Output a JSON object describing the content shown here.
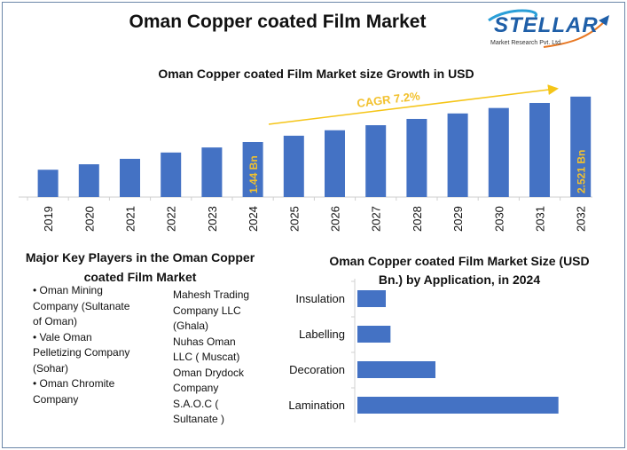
{
  "title": "Oman Copper coated Film Market",
  "logo": {
    "name": "STELLAR",
    "subtitle": "Market Research Pvt. Ltd."
  },
  "players": {
    "title": "Major Key Players in the Oman Copper coated Film Market",
    "column1": [
      "Oman Mining Company (Sultanate of Oman)",
      "Vale Oman Pelletizing Company (Sohar)",
      "Oman Chromite Company"
    ],
    "column2": [
      "Mahesh Trading Company LLC (Ghala)",
      "Nuhas Oman LLC ( Muscat)",
      "Oman Drydock Company S.A.O.C ( Sultanate )"
    ]
  },
  "chart_data": [
    {
      "type": "bar",
      "title": "Oman Copper coated Film Market size Growth in USD",
      "categories": [
        "2019",
        "2020",
        "2021",
        "2022",
        "2023",
        "2024",
        "2025",
        "2026",
        "2027",
        "2028",
        "2029",
        "2030",
        "2031",
        "2032"
      ],
      "values": [
        0.78,
        0.91,
        1.04,
        1.19,
        1.31,
        1.44,
        1.59,
        1.72,
        1.84,
        1.99,
        2.12,
        2.25,
        2.37,
        2.521
      ],
      "data_labels": {
        "2024": "1.44 Bn",
        "2032": "2.521 Bn"
      },
      "annotation": "CAGR 7.2%",
      "ylim": [
        0.13,
        2.75
      ],
      "xlabel": "",
      "ylabel": "",
      "colors": {
        "bar": "#4472C4",
        "label": "#F2C12E",
        "arrow": "#F5C518"
      }
    },
    {
      "type": "bar",
      "orientation": "horizontal",
      "title": "Oman Copper coated Film Market Size (USD Bn.) by Application, in 2024",
      "categories": [
        "Insulation",
        "Labelling",
        "Decoration",
        "Lamination"
      ],
      "values": [
        0.12,
        0.14,
        0.33,
        0.85
      ],
      "xlim": [
        0,
        0.9
      ],
      "colors": {
        "bar": "#4472C4"
      }
    }
  ]
}
